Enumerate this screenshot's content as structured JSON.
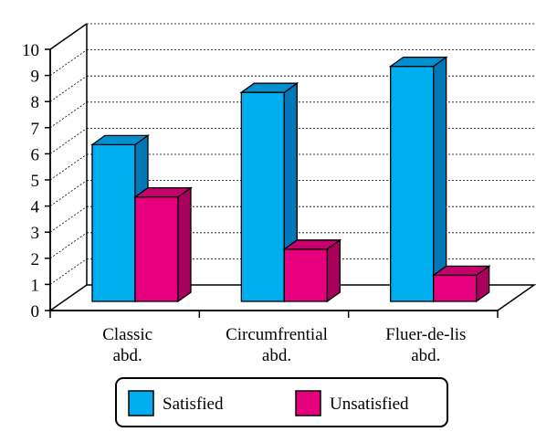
{
  "chart_data": {
    "type": "bar",
    "title": "",
    "xlabel": "",
    "ylabel": "",
    "categories": [
      [
        "Classic",
        "abd."
      ],
      [
        "Circumfrential",
        "abd."
      ],
      [
        "Fluer-de-lis",
        "abd."
      ]
    ],
    "series": [
      {
        "name": "Satisfied",
        "values": [
          6,
          8,
          9
        ],
        "color": "#00AEEF",
        "side_color": "#0077B6",
        "top_color": "#0090D0"
      },
      {
        "name": "Unsatisfied",
        "values": [
          4,
          2,
          1
        ],
        "color": "#E6007E",
        "side_color": "#A8005C",
        "top_color": "#C4006A"
      }
    ],
    "ylim": [
      0,
      10
    ],
    "yticks": [
      0,
      1,
      2,
      3,
      4,
      5,
      6,
      7,
      8,
      9,
      10
    ],
    "grid": true,
    "style": "3d-bar",
    "legend_position": "bottom"
  }
}
